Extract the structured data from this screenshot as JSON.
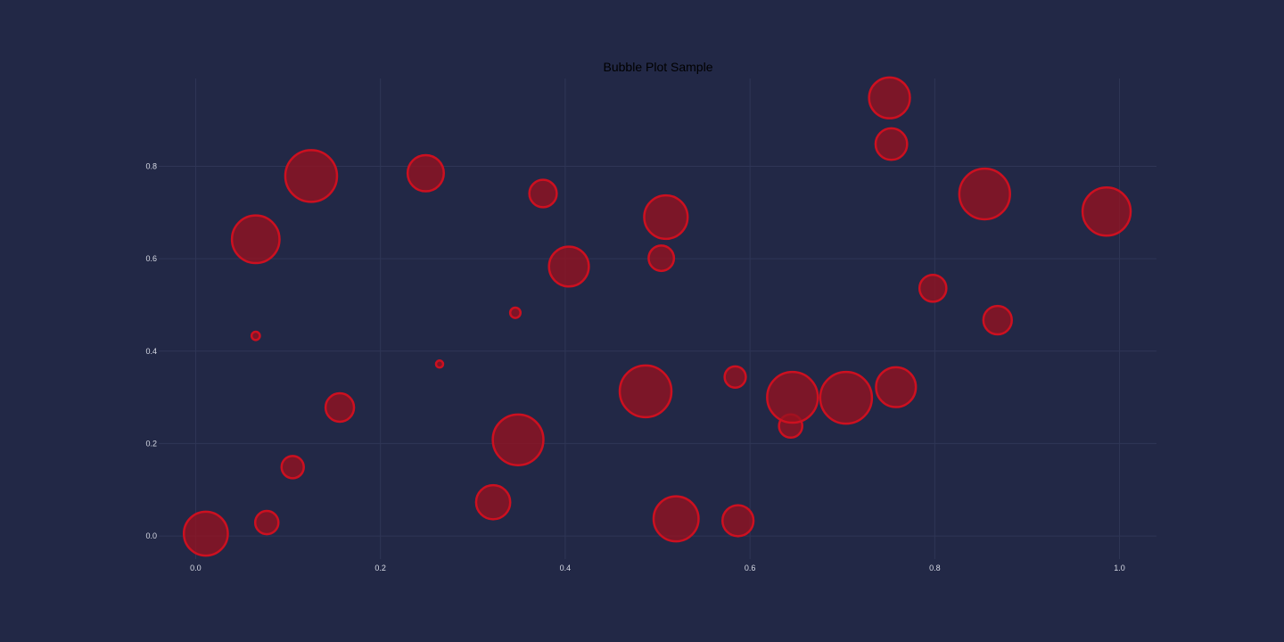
{
  "chart_data": {
    "type": "scatter",
    "title": "Bubble Plot Sample",
    "xlabel": "",
    "ylabel": "",
    "xlim": [
      -0.04,
      1.04
    ],
    "ylim": [
      -0.05,
      0.99
    ],
    "x_ticks": [
      "0.0",
      "0.2",
      "0.4",
      "0.6",
      "0.8",
      "1.0"
    ],
    "y_ticks": [
      "0.0",
      "0.2",
      "0.4",
      "0.6",
      "0.8"
    ],
    "grid": true,
    "colors": {
      "background": "#222846",
      "bubble_fill": "#961220",
      "bubble_edge": "#cc1020",
      "grid": "#2f3656"
    },
    "points": [
      {
        "x": 0.011,
        "y": 0.005,
        "size": 0.85
      },
      {
        "x": 0.077,
        "y": 0.029,
        "size": 0.45
      },
      {
        "x": 0.105,
        "y": 0.149,
        "size": 0.43
      },
      {
        "x": 0.065,
        "y": 0.433,
        "size": 0.16
      },
      {
        "x": 0.065,
        "y": 0.642,
        "size": 0.92
      },
      {
        "x": 0.125,
        "y": 0.779,
        "size": 1.0
      },
      {
        "x": 0.156,
        "y": 0.278,
        "size": 0.55
      },
      {
        "x": 0.249,
        "y": 0.785,
        "size": 0.7
      },
      {
        "x": 0.264,
        "y": 0.372,
        "size": 0.09
      },
      {
        "x": 0.322,
        "y": 0.073,
        "size": 0.66
      },
      {
        "x": 0.346,
        "y": 0.483,
        "size": 0.2
      },
      {
        "x": 0.349,
        "y": 0.208,
        "size": 0.98
      },
      {
        "x": 0.376,
        "y": 0.741,
        "size": 0.53
      },
      {
        "x": 0.404,
        "y": 0.583,
        "size": 0.77
      },
      {
        "x": 0.487,
        "y": 0.313,
        "size": 1.0
      },
      {
        "x": 0.504,
        "y": 0.601,
        "size": 0.49
      },
      {
        "x": 0.509,
        "y": 0.69,
        "size": 0.84
      },
      {
        "x": 0.52,
        "y": 0.037,
        "size": 0.87
      },
      {
        "x": 0.584,
        "y": 0.344,
        "size": 0.41
      },
      {
        "x": 0.587,
        "y": 0.033,
        "size": 0.6
      },
      {
        "x": 0.644,
        "y": 0.238,
        "size": 0.45
      },
      {
        "x": 0.646,
        "y": 0.3,
        "size": 0.98
      },
      {
        "x": 0.704,
        "y": 0.299,
        "size": 1.0
      },
      {
        "x": 0.751,
        "y": 0.948,
        "size": 0.79
      },
      {
        "x": 0.753,
        "y": 0.848,
        "size": 0.61
      },
      {
        "x": 0.758,
        "y": 0.322,
        "size": 0.77
      },
      {
        "x": 0.798,
        "y": 0.536,
        "size": 0.52
      },
      {
        "x": 0.854,
        "y": 0.74,
        "size": 0.98
      },
      {
        "x": 0.868,
        "y": 0.467,
        "size": 0.55
      },
      {
        "x": 0.986,
        "y": 0.702,
        "size": 0.93
      }
    ]
  }
}
